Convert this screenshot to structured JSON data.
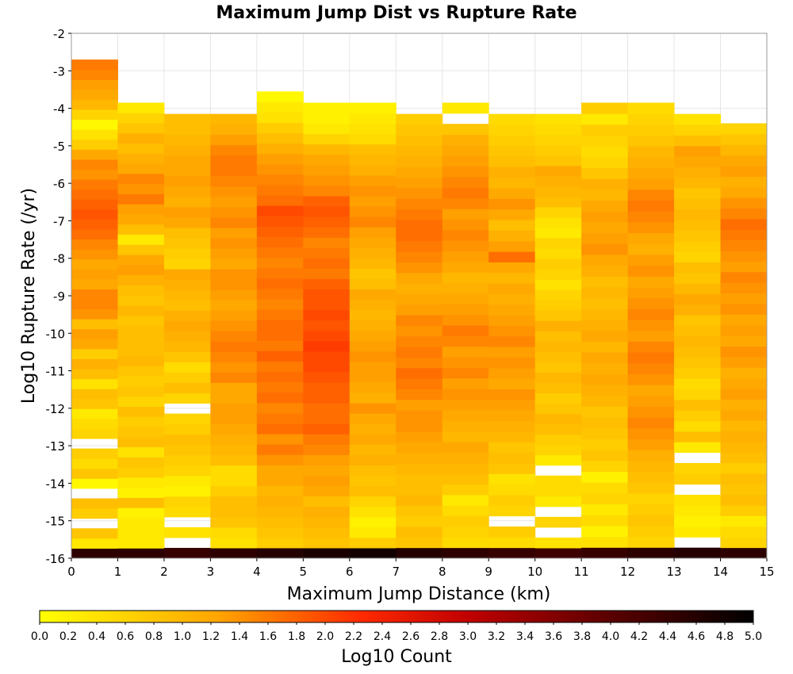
{
  "chart_data": {
    "type": "heatmap",
    "title": "Maximum Jump Dist vs Rupture Rate",
    "xlabel": "Maximum Jump Distance (km)",
    "ylabel": "Log10 Rupture Rate (/yr)",
    "xlim": [
      0,
      15
    ],
    "ylim": [
      -16,
      -2
    ],
    "x_ticks": [
      "0",
      "1",
      "2",
      "3",
      "4",
      "5",
      "6",
      "7",
      "8",
      "9",
      "10",
      "11",
      "12",
      "13",
      "14",
      "15"
    ],
    "y_ticks": [
      "-2",
      "-3",
      "-4",
      "-5",
      "-6",
      "-7",
      "-8",
      "-9",
      "-10",
      "-11",
      "-12",
      "-13",
      "-14",
      "-15",
      "-16"
    ],
    "x_bin_width": 1,
    "y_bin_width": 0.28,
    "y_bin_start": -16,
    "colorbar": {
      "label": "Log10 Count",
      "range": [
        0,
        5
      ],
      "ticks": [
        "0.0",
        "0.2",
        "0.4",
        "0.6",
        "0.8",
        "1.0",
        "1.2",
        "1.4",
        "1.6",
        "1.8",
        "2.0",
        "2.2",
        "2.4",
        "2.6",
        "2.8",
        "3.0",
        "3.2",
        "3.4",
        "3.6",
        "3.8",
        "4.0",
        "4.2",
        "4.4",
        "4.6",
        "4.8",
        "5.0"
      ],
      "colors": [
        "#ffff00",
        "#ffa500",
        "#ff0000",
        "#8b0000",
        "#000000"
      ]
    },
    "columns": [
      {
        "x": 0,
        "top": -2.7,
        "values": [
          4.5,
          0.3,
          0.8,
          null,
          0.7,
          0.9,
          null,
          0.1,
          0.8,
          0.5,
          0.7,
          null,
          0.6,
          0.5,
          0.3,
          0.8,
          0.9,
          0.4,
          0.9,
          1.1,
          0.7,
          1.2,
          1.3,
          0.9,
          1.4,
          1.5,
          1.5,
          1.2,
          1.3,
          1.2,
          1.4,
          1.5,
          1.7,
          1.8,
          1.9,
          1.8,
          1.7,
          1.6,
          1.4,
          1.5,
          1.2,
          0.7,
          0.4,
          0.1,
          0.6,
          1.0,
          1.2,
          1.3,
          1.5,
          1.6
        ]
      },
      {
        "x": 1,
        "top": -3.85,
        "values": [
          4.5,
          0.3,
          0.3,
          0.3,
          0.2,
          0.9,
          0.2,
          0.3,
          0.7,
          0.8,
          0.4,
          0.9,
          0.8,
          0.7,
          0.9,
          0.6,
          0.8,
          0.7,
          0.8,
          1.0,
          0.9,
          0.9,
          0.9,
          0.8,
          1.0,
          0.8,
          0.9,
          1.1,
          1.3,
          1.2,
          0.8,
          0.3,
          0.9,
          1.2,
          1.3,
          1.6,
          1.4,
          1.5,
          1.2,
          1.1,
          0.9,
          1.1,
          0.8,
          0.6,
          0.3
        ]
      },
      {
        "x": 2,
        "top": -4.15,
        "values": [
          4.4,
          null,
          0.4,
          null,
          0.5,
          0.6,
          0.2,
          0.3,
          0.6,
          0.7,
          0.8,
          0.9,
          0.7,
          0.6,
          null,
          0.6,
          0.9,
          0.7,
          0.5,
          0.8,
          1.0,
          1.1,
          1.2,
          1.1,
          0.9,
          1.0,
          1.1,
          1.2,
          0.6,
          0.7,
          0.8,
          0.9,
          1.2,
          1.3,
          1.1,
          1.2,
          1.3,
          1.2,
          1.2,
          1.1,
          1.0,
          0.9,
          0.9
        ]
      },
      {
        "x": 3,
        "top": -4.15,
        "values": [
          4.5,
          0.4,
          0.5,
          0.8,
          0.9,
          0.9,
          0.7,
          0.5,
          0.5,
          0.9,
          1.0,
          1.1,
          1.2,
          1.3,
          1.3,
          1.2,
          1.2,
          1.5,
          1.4,
          1.5,
          1.6,
          1.5,
          1.4,
          1.3,
          1.2,
          1.3,
          1.4,
          1.4,
          1.2,
          1.3,
          1.4,
          1.3,
          1.5,
          1.4,
          1.3,
          1.4,
          1.5,
          1.6,
          1.6,
          1.5,
          1.3,
          1.1,
          1.0
        ]
      },
      {
        "x": 4,
        "top": -3.55,
        "values": [
          4.6,
          0.7,
          0.8,
          0.9,
          1.0,
          1.1,
          1.0,
          1.2,
          1.2,
          1.4,
          1.6,
          1.4,
          1.7,
          1.6,
          1.5,
          1.7,
          1.6,
          1.7,
          1.6,
          1.8,
          1.6,
          1.7,
          1.7,
          1.6,
          1.5,
          1.6,
          1.7,
          1.6,
          1.5,
          1.6,
          1.7,
          1.8,
          1.9,
          2.0,
          1.7,
          1.6,
          1.5,
          1.4,
          1.3,
          1.1,
          0.9,
          0.7,
          0.4,
          0.3,
          0.1
        ]
      },
      {
        "x": 5,
        "top": -3.85,
        "values": [
          4.7,
          0.8,
          0.9,
          1.0,
          1.1,
          0.9,
          1.2,
          1.3,
          1.2,
          1.3,
          1.5,
          1.6,
          1.8,
          1.7,
          1.7,
          1.8,
          1.8,
          1.9,
          2.0,
          2.0,
          2.1,
          2.0,
          1.9,
          2.0,
          1.9,
          1.9,
          1.8,
          1.6,
          1.7,
          1.6,
          1.5,
          1.7,
          1.8,
          1.9,
          1.8,
          1.5,
          1.4,
          1.3,
          1.2,
          1.0,
          0.6,
          0.3,
          0.2,
          0.2
        ]
      },
      {
        "x": 6,
        "top": -3.85,
        "values": [
          4.8,
          0.7,
          0.3,
          0.2,
          0.4,
          0.6,
          0.9,
          0.8,
          0.9,
          1.1,
          1.0,
          1.2,
          1.1,
          1.2,
          1.4,
          1.1,
          1.2,
          1.3,
          1.3,
          1.4,
          1.3,
          1.2,
          1.1,
          1.0,
          1.1,
          1.2,
          0.9,
          0.8,
          1.0,
          1.1,
          1.2,
          1.3,
          1.5,
          1.4,
          1.3,
          1.4,
          1.3,
          1.1,
          1.0,
          0.9,
          0.5,
          0.4,
          0.3,
          0.2
        ]
      },
      {
        "x": 7,
        "top": -4.15,
        "values": [
          4.6,
          0.8,
          0.9,
          0.7,
          0.8,
          1.0,
          0.9,
          0.9,
          1.0,
          1.1,
          1.2,
          1.3,
          1.4,
          1.4,
          1.3,
          1.5,
          1.6,
          1.7,
          1.5,
          1.6,
          1.5,
          1.4,
          1.5,
          1.3,
          1.2,
          1.1,
          1.2,
          1.4,
          1.5,
          1.6,
          1.7,
          1.7,
          1.6,
          1.5,
          1.4,
          1.3,
          1.2,
          1.1,
          1.0,
          0.9,
          0.8,
          0.7
        ]
      },
      {
        "x": 8,
        "top": -3.85,
        "values": [
          4.5,
          0.5,
          0.6,
          0.7,
          0.5,
          0.3,
          0.7,
          0.9,
          1.0,
          1.1,
          1.2,
          1.0,
          1.1,
          1.2,
          1.3,
          1.4,
          1.3,
          1.5,
          1.4,
          1.3,
          1.5,
          1.6,
          1.4,
          1.3,
          1.2,
          1.1,
          1.0,
          1.2,
          1.3,
          1.4,
          1.5,
          1.4,
          1.3,
          1.5,
          1.6,
          1.5,
          1.4,
          1.3,
          1.2,
          1.1,
          0.8,
          null,
          0.3
        ]
      },
      {
        "x": 9,
        "top": -4.15,
        "values": [
          4.4,
          0.5,
          0.7,
          null,
          0.6,
          0.7,
          0.5,
          0.4,
          0.8,
          0.9,
          0.8,
          1.0,
          1.1,
          1.2,
          1.3,
          1.4,
          1.2,
          1.3,
          1.4,
          1.3,
          1.5,
          1.4,
          1.3,
          1.2,
          1.1,
          1.2,
          1.0,
          1.2,
          1.7,
          1.3,
          1.1,
          0.9,
          1.2,
          1.4,
          1.2,
          1.0,
          1.1,
          0.9,
          0.8,
          0.7,
          0.6,
          0.5
        ]
      },
      {
        "x": 10,
        "top": -4.15,
        "values": [
          4.3,
          0.4,
          null,
          0.6,
          null,
          0.3,
          0.5,
          0.5,
          null,
          0.3,
          0.6,
          0.7,
          0.9,
          1.0,
          0.8,
          0.7,
          0.9,
          1.0,
          0.8,
          0.9,
          1.0,
          0.9,
          1.1,
          0.8,
          0.7,
          0.6,
          0.4,
          0.6,
          0.7,
          0.5,
          0.6,
          0.3,
          0.4,
          0.6,
          0.9,
          1.0,
          1.1,
          1.2,
          0.8,
          0.7,
          0.6,
          0.5,
          0.4
        ]
      },
      {
        "x": 11,
        "top": -3.85,
        "values": [
          4.4,
          0.4,
          0.2,
          0.5,
          0.3,
          0.6,
          0.5,
          0.2,
          0.6,
          0.8,
          0.7,
          0.8,
          0.9,
          0.8,
          1.0,
          1.1,
          1.2,
          1.1,
          1.2,
          1.0,
          1.2,
          1.1,
          1.0,
          0.9,
          1.0,
          0.9,
          1.1,
          1.2,
          1.4,
          1.3,
          1.2,
          1.3,
          1.2,
          1.0,
          1.1,
          0.8,
          0.6,
          0.5,
          0.6,
          0.7,
          0.3,
          0.7
        ]
      },
      {
        "x": 12,
        "top": -3.85,
        "values": [
          4.5,
          0.6,
          0.7,
          0.8,
          0.7,
          0.6,
          0.8,
          0.9,
          1.0,
          1.1,
          1.3,
          1.4,
          1.5,
          1.4,
          1.3,
          1.2,
          1.4,
          1.5,
          1.6,
          1.5,
          1.3,
          1.4,
          1.5,
          1.4,
          1.3,
          1.2,
          1.4,
          1.3,
          1.1,
          1.2,
          1.4,
          1.5,
          1.6,
          1.5,
          1.3,
          1.2,
          1.1,
          1.0,
          0.8,
          0.7,
          0.6,
          0.5
        ]
      },
      {
        "x": 13,
        "top": -4.15,
        "values": [
          4.6,
          null,
          0.3,
          0.2,
          0.3,
          0.4,
          null,
          0.7,
          0.6,
          null,
          0.3,
          0.9,
          0.5,
          0.7,
          0.9,
          0.6,
          0.5,
          0.7,
          0.8,
          0.9,
          1.0,
          0.9,
          0.8,
          1.1,
          1.2,
          1.0,
          0.8,
          0.9,
          0.6,
          0.7,
          0.8,
          0.9,
          1.0,
          0.9,
          0.8,
          1.0,
          1.1,
          1.2,
          1.3,
          0.9,
          0.6,
          0.4
        ]
      },
      {
        "x": 14,
        "top": -4.4,
        "values": [
          4.5,
          0.6,
          0.5,
          0.3,
          0.7,
          0.9,
          0.8,
          0.9,
          0.7,
          0.9,
          1.0,
          1.1,
          1.0,
          1.2,
          1.1,
          1.3,
          1.2,
          1.1,
          1.3,
          1.4,
          1.2,
          1.3,
          1.2,
          1.4,
          1.3,
          1.4,
          1.5,
          1.3,
          1.4,
          1.5,
          1.6,
          1.7,
          1.5,
          1.4,
          1.2,
          1.1,
          1.3,
          1.2,
          1.0,
          0.8,
          0.6
        ]
      }
    ]
  }
}
